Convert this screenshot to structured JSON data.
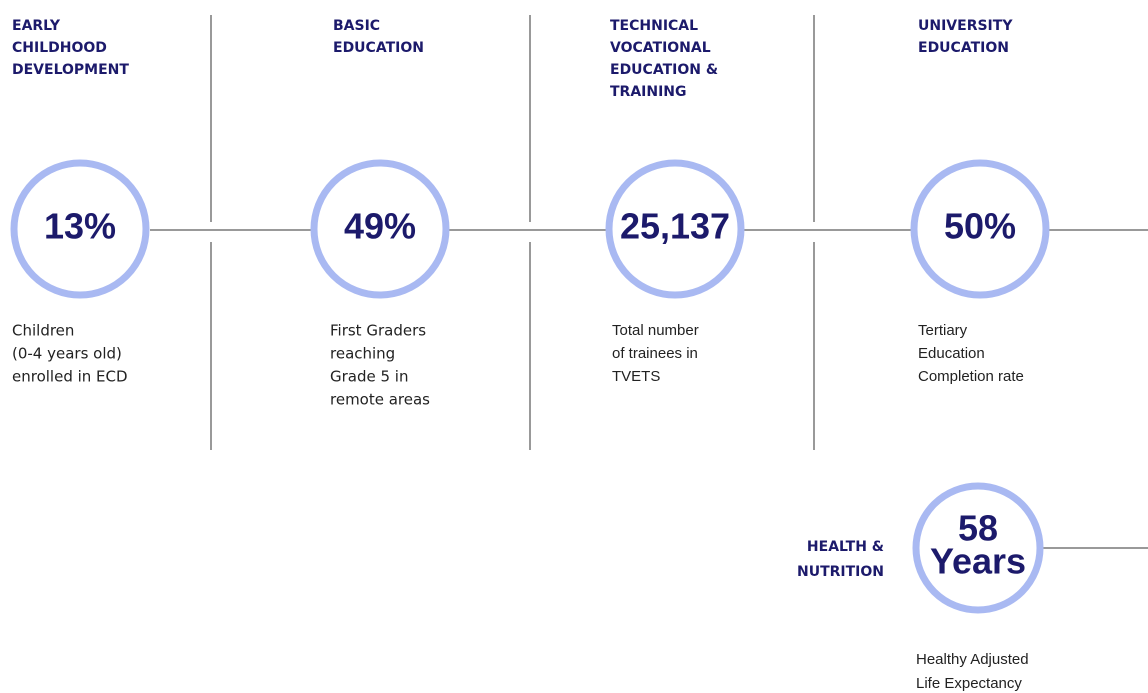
{
  "columns": [
    {
      "heading": [
        "EARLY",
        "CHILDHOOD",
        "DEVELOPMENT"
      ],
      "value": "13%",
      "description": [
        "Children",
        "(0-4 years old)",
        "enrolled in ECD"
      ]
    },
    {
      "heading": [
        "BASIC",
        "EDUCATION"
      ],
      "value": "49%",
      "description": [
        "First Graders",
        "reaching",
        "Grade 5 in",
        "remote areas"
      ]
    },
    {
      "heading": [
        "TECHNICAL",
        "VOCATIONAL",
        "EDUCATION &",
        "TRAINING"
      ],
      "value": "25,137",
      "description": [
        "Total number",
        "of trainees in",
        "TVETS"
      ]
    },
    {
      "heading": [
        "UNIVERSITY",
        "EDUCATION"
      ],
      "value": "50%",
      "description": [
        "Tertiary",
        "Education",
        "Completion rate"
      ]
    }
  ],
  "health": {
    "heading": [
      "HEALTH &",
      "NUTRITION"
    ],
    "value": "58",
    "unit": "Years",
    "description": [
      "Healthy Adjusted",
      "Life Expectancy"
    ]
  }
}
